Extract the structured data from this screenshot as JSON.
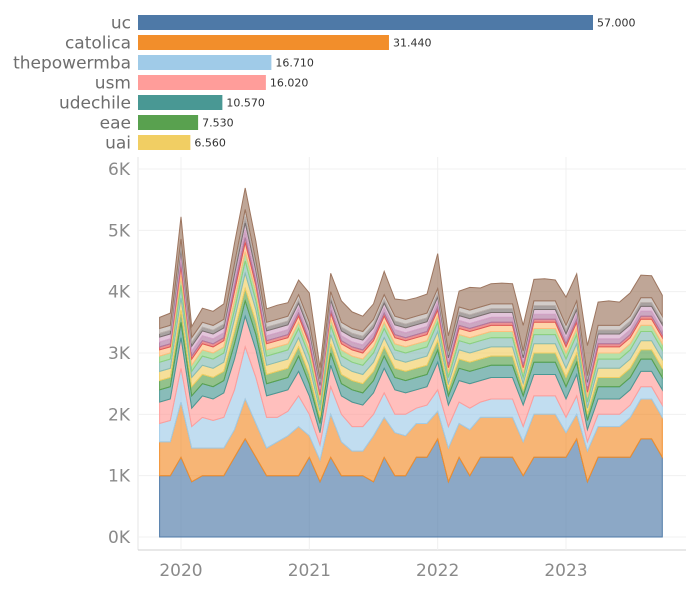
{
  "chart_data": [
    {
      "type": "bar",
      "orientation": "horizontal",
      "categories": [
        "uc",
        "catolica",
        "thepowermba",
        "usm",
        "udechile",
        "eae",
        "uai"
      ],
      "values": [
        57.0,
        31.44,
        16.71,
        16.02,
        10.57,
        7.53,
        6.56
      ],
      "value_labels": [
        "57.000",
        "31.440",
        "16.710",
        "16.020",
        "10.570",
        "7.530",
        "6.560"
      ],
      "colors": [
        "#4e79a7",
        "#f28e2b",
        "#a0cbe8",
        "#ff9d9a",
        "#499894",
        "#59a14f",
        "#f1ce63"
      ],
      "xlim": [
        0,
        57.0
      ],
      "grid": false
    },
    {
      "type": "area",
      "stacked": true,
      "x": [
        "2019-11",
        "2019-12",
        "2020-01",
        "2020-02",
        "2020-03",
        "2020-04",
        "2020-05",
        "2020-06",
        "2020-07",
        "2020-08",
        "2020-09",
        "2020-10",
        "2020-11",
        "2020-12",
        "2021-01",
        "2021-02",
        "2021-03",
        "2021-04",
        "2021-05",
        "2021-06",
        "2021-07",
        "2021-08",
        "2021-09",
        "2021-10",
        "2021-11",
        "2021-12",
        "2022-01",
        "2022-02",
        "2022-03",
        "2022-04",
        "2022-05",
        "2022-06",
        "2022-07",
        "2022-08",
        "2022-09",
        "2022-10",
        "2022-11",
        "2022-12",
        "2023-01",
        "2023-02",
        "2023-03",
        "2023-04",
        "2023-05",
        "2023-06",
        "2023-07",
        "2023-08",
        "2023-09",
        "2023-10"
      ],
      "series": [
        {
          "color": "#4e79a7",
          "values": [
            1000,
            1000,
            1300,
            900,
            1000,
            1000,
            1000,
            1300,
            1600,
            1300,
            1000,
            1000,
            1000,
            1000,
            1300,
            900,
            1300,
            1000,
            1000,
            1000,
            900,
            1300,
            1000,
            1000,
            1300,
            1300,
            1600,
            900,
            1300,
            1000,
            1300,
            1300,
            1300,
            1300,
            1000,
            1300,
            1300,
            1300,
            1300,
            1600,
            900,
            1300,
            1300,
            1300,
            1300,
            1600,
            1600,
            1300
          ]
        },
        {
          "color": "#f28e2b",
          "values": [
            550,
            550,
            900,
            550,
            450,
            450,
            450,
            450,
            650,
            550,
            450,
            550,
            650,
            800,
            350,
            350,
            700,
            550,
            400,
            400,
            750,
            650,
            700,
            650,
            550,
            550,
            450,
            550,
            550,
            750,
            650,
            650,
            650,
            650,
            550,
            700,
            700,
            700,
            400,
            400,
            500,
            500,
            500,
            500,
            650,
            650,
            650,
            650
          ]
        },
        {
          "color": "#a0cbe8",
          "values": [
            300,
            350,
            550,
            350,
            500,
            450,
            500,
            650,
            850,
            750,
            500,
            400,
            400,
            500,
            350,
            250,
            450,
            450,
            400,
            400,
            350,
            400,
            300,
            350,
            250,
            300,
            350,
            350,
            350,
            350,
            250,
            300,
            300,
            300,
            250,
            300,
            300,
            300,
            250,
            300,
            150,
            200,
            200,
            200,
            200,
            200,
            200,
            200
          ]
        },
        {
          "color": "#ff9d9a",
          "values": [
            350,
            350,
            500,
            300,
            350,
            350,
            400,
            500,
            500,
            450,
            350,
            400,
            350,
            400,
            300,
            200,
            350,
            300,
            400,
            350,
            350,
            400,
            400,
            350,
            300,
            300,
            450,
            350,
            350,
            400,
            350,
            350,
            350,
            350,
            350,
            350,
            350,
            350,
            300,
            350,
            200,
            250,
            250,
            250,
            250,
            250,
            250,
            250
          ]
        },
        {
          "color": "#499894",
          "values": [
            200,
            200,
            250,
            200,
            200,
            200,
            200,
            250,
            250,
            250,
            200,
            200,
            200,
            250,
            200,
            150,
            200,
            200,
            200,
            200,
            200,
            200,
            200,
            200,
            200,
            200,
            200,
            150,
            200,
            200,
            200,
            200,
            200,
            200,
            150,
            200,
            200,
            200,
            200,
            200,
            150,
            200,
            200,
            200,
            200,
            200,
            200,
            200
          ]
        },
        {
          "color": "#59a14f",
          "values": [
            150,
            150,
            200,
            150,
            150,
            150,
            150,
            200,
            200,
            200,
            150,
            150,
            150,
            150,
            150,
            100,
            150,
            150,
            150,
            150,
            150,
            150,
            150,
            150,
            150,
            150,
            150,
            100,
            150,
            150,
            150,
            150,
            150,
            150,
            100,
            150,
            150,
            150,
            150,
            150,
            100,
            150,
            150,
            150,
            150,
            150,
            150,
            150
          ]
        },
        {
          "color": "#f1ce63",
          "values": [
            150,
            150,
            200,
            150,
            150,
            150,
            150,
            200,
            250,
            200,
            150,
            150,
            150,
            150,
            150,
            100,
            150,
            150,
            150,
            150,
            150,
            150,
            150,
            150,
            150,
            150,
            150,
            100,
            150,
            150,
            150,
            150,
            150,
            150,
            100,
            150,
            150,
            150,
            150,
            150,
            100,
            150,
            150,
            150,
            150,
            150,
            150,
            150
          ]
        },
        {
          "color": "#86bcb6",
          "values": [
            150,
            150,
            200,
            100,
            150,
            150,
            150,
            150,
            200,
            150,
            150,
            150,
            150,
            150,
            150,
            100,
            150,
            150,
            150,
            150,
            150,
            150,
            150,
            150,
            150,
            150,
            150,
            100,
            150,
            150,
            150,
            150,
            150,
            150,
            100,
            150,
            150,
            150,
            150,
            150,
            100,
            150,
            150,
            150,
            150,
            150,
            150,
            150
          ]
        },
        {
          "color": "#8cd17d",
          "values": [
            100,
            100,
            150,
            100,
            100,
            100,
            100,
            150,
            150,
            150,
            100,
            100,
            100,
            100,
            100,
            80,
            100,
            100,
            100,
            100,
            100,
            100,
            100,
            100,
            100,
            100,
            100,
            80,
            100,
            100,
            100,
            100,
            100,
            100,
            80,
            100,
            100,
            100,
            100,
            100,
            80,
            100,
            100,
            100,
            100,
            100,
            100,
            100
          ]
        },
        {
          "color": "#ffbe7d",
          "values": [
            100,
            100,
            150,
            100,
            100,
            100,
            100,
            150,
            150,
            100,
            100,
            100,
            100,
            100,
            100,
            80,
            100,
            100,
            100,
            100,
            100,
            100,
            100,
            100,
            100,
            100,
            100,
            80,
            100,
            100,
            100,
            100,
            100,
            100,
            80,
            100,
            100,
            100,
            100,
            100,
            80,
            100,
            100,
            100,
            100,
            100,
            100,
            100
          ]
        },
        {
          "color": "#e15759",
          "values": [
            50,
            50,
            80,
            50,
            50,
            50,
            50,
            80,
            80,
            60,
            50,
            50,
            50,
            50,
            50,
            40,
            50,
            50,
            50,
            50,
            50,
            50,
            50,
            50,
            50,
            50,
            50,
            40,
            50,
            50,
            50,
            50,
            50,
            50,
            40,
            50,
            50,
            50,
            50,
            50,
            40,
            50,
            50,
            50,
            50,
            50,
            50,
            50
          ]
        },
        {
          "color": "#b07aa1",
          "values": [
            80,
            80,
            100,
            80,
            80,
            80,
            80,
            100,
            120,
            90,
            80,
            80,
            80,
            80,
            80,
            60,
            80,
            80,
            80,
            80,
            80,
            80,
            80,
            80,
            80,
            80,
            80,
            60,
            80,
            80,
            80,
            80,
            80,
            80,
            60,
            80,
            80,
            80,
            80,
            80,
            60,
            80,
            80,
            80,
            80,
            80,
            80,
            80
          ]
        },
        {
          "color": "#d4a6c8",
          "values": [
            80,
            80,
            100,
            80,
            80,
            80,
            80,
            100,
            120,
            90,
            80,
            80,
            80,
            80,
            80,
            60,
            80,
            80,
            80,
            80,
            80,
            80,
            80,
            80,
            80,
            80,
            80,
            60,
            80,
            80,
            80,
            80,
            80,
            80,
            60,
            80,
            80,
            80,
            80,
            80,
            60,
            80,
            80,
            80,
            80,
            80,
            80,
            80
          ]
        },
        {
          "color": "#79706e",
          "values": [
            60,
            60,
            80,
            60,
            60,
            60,
            60,
            80,
            100,
            70,
            60,
            60,
            60,
            60,
            60,
            50,
            60,
            60,
            60,
            60,
            60,
            60,
            60,
            60,
            60,
            60,
            60,
            50,
            60,
            60,
            60,
            60,
            60,
            60,
            50,
            60,
            60,
            60,
            60,
            60,
            50,
            60,
            60,
            60,
            60,
            60,
            60,
            60
          ]
        },
        {
          "color": "#bab0ac",
          "values": [
            80,
            80,
            100,
            80,
            80,
            80,
            80,
            100,
            120,
            90,
            80,
            80,
            80,
            80,
            80,
            60,
            80,
            80,
            80,
            80,
            80,
            80,
            80,
            80,
            80,
            80,
            80,
            60,
            80,
            80,
            80,
            80,
            80,
            80,
            60,
            80,
            80,
            80,
            80,
            80,
            60,
            80,
            80,
            80,
            80,
            80,
            80,
            80
          ]
        },
        {
          "color": "#9d7660",
          "values": [
            180,
            200,
            360,
            180,
            230,
            230,
            250,
            330,
            350,
            320,
            220,
            230,
            220,
            240,
            480,
            180,
            300,
            350,
            270,
            250,
            250,
            380,
            280,
            310,
            300,
            310,
            570,
            250,
            260,
            370,
            310,
            330,
            340,
            330,
            420,
            350,
            360,
            340,
            460,
            440,
            490,
            380,
            400,
            380,
            380,
            370,
            360,
            340
          ]
        }
      ],
      "ylim": [
        0,
        6000
      ],
      "yticks": [
        "0K",
        "1K",
        "2K",
        "3K",
        "4K",
        "5K",
        "6K"
      ],
      "xticks": [
        "2020",
        "2021",
        "2022",
        "2023"
      ],
      "grid": true
    }
  ]
}
